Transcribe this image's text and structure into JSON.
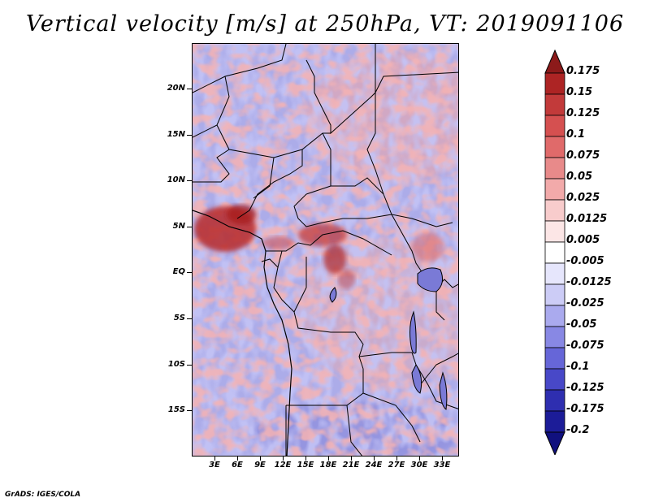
{
  "title": "Vertical velocity [m/s] at 250hPa, VT: 2019091106",
  "footer": "GrADS: IGES/COLA",
  "y_axis_labels": [
    "20N",
    "15N",
    "10N",
    "5N",
    "EQ",
    "5S",
    "10S",
    "15S"
  ],
  "x_axis_labels": [
    "3E",
    "6E",
    "9E",
    "12E",
    "15E",
    "18E",
    "21E",
    "24E",
    "27E",
    "30E",
    "33E"
  ],
  "colorbar": {
    "labels": [
      "0.175",
      "0.15",
      "0.125",
      "0.1",
      "0.075",
      "0.05",
      "0.025",
      "0.0125",
      "0.005",
      "-0.005",
      "-0.0125",
      "-0.025",
      "-0.05",
      "-0.075",
      "-0.1",
      "-0.125",
      "-0.175",
      "-0.2"
    ],
    "colors": [
      "#8c1a1a",
      "#ad2424",
      "#c23a3a",
      "#d55050",
      "#e06a6a",
      "#e88a8a",
      "#f2aaaa",
      "#f8cccc",
      "#fce6e6",
      "#ffffff",
      "#e6e6fc",
      "#ccccf6",
      "#aaaaee",
      "#8888e4",
      "#6666d8",
      "#4848c8",
      "#2e2eb0",
      "#1c1c98",
      "#10107e"
    ]
  }
}
